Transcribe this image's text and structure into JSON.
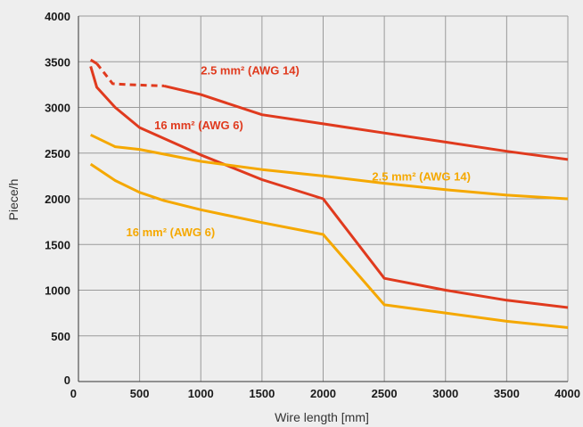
{
  "chart_data": {
    "type": "line",
    "xlabel": "Wire length [mm]",
    "ylabel": "Piece/h",
    "xlim": [
      0,
      4000
    ],
    "ylim": [
      0,
      4000
    ],
    "xticks": [
      "0",
      "500",
      "1000",
      "1500",
      "2000",
      "2500",
      "3000",
      "3500",
      "4000"
    ],
    "yticks": [
      "0",
      "500",
      "1000",
      "1500",
      "2000",
      "2500",
      "3000",
      "3500",
      "4000"
    ],
    "grid": true,
    "colors": {
      "red": "#e03a1e",
      "orange": "#f5a800",
      "grid": "#9a9a9a",
      "background": "#eeeeee"
    },
    "series": [
      {
        "name": "2.5 mm² (AWG 14)",
        "color": "#e03a1e",
        "segments": [
          {
            "style": "solid",
            "points": [
              [
                100,
                3520
              ],
              [
                150,
                3480
              ]
            ]
          },
          {
            "style": "dashed",
            "points": [
              [
                150,
                3480
              ],
              [
                280,
                3260
              ],
              [
                400,
                3250
              ],
              [
                600,
                3240
              ],
              [
                700,
                3235
              ]
            ]
          },
          {
            "style": "solid",
            "points": [
              [
                700,
                3235
              ],
              [
                1000,
                3140
              ],
              [
                1500,
                2920
              ],
              [
                2000,
                2820
              ],
              [
                2500,
                2720
              ],
              [
                3000,
                2620
              ],
              [
                3500,
                2520
              ],
              [
                4000,
                2430
              ]
            ]
          }
        ]
      },
      {
        "name": "16 mm² (AWG 6)",
        "color": "#e03a1e",
        "segments": [
          {
            "style": "solid",
            "points": [
              [
                100,
                3450
              ],
              [
                150,
                3220
              ],
              [
                300,
                3000
              ],
              [
                500,
                2780
              ],
              [
                1000,
                2480
              ],
              [
                1500,
                2210
              ],
              [
                2000,
                2000
              ],
              [
                2500,
                1130
              ],
              [
                3000,
                1000
              ],
              [
                3500,
                890
              ],
              [
                4000,
                810
              ]
            ]
          }
        ]
      },
      {
        "name": "2.5 mm² (AWG 14)",
        "color": "#f5a800",
        "segments": [
          {
            "style": "solid",
            "points": [
              [
                100,
                2700
              ],
              [
                300,
                2570
              ],
              [
                500,
                2540
              ],
              [
                1000,
                2410
              ],
              [
                1500,
                2320
              ],
              [
                2000,
                2250
              ],
              [
                2500,
                2170
              ],
              [
                3000,
                2100
              ],
              [
                3500,
                2040
              ],
              [
                4000,
                2000
              ]
            ]
          }
        ]
      },
      {
        "name": "16 mm² (AWG 6)",
        "color": "#f5a800",
        "segments": [
          {
            "style": "solid",
            "points": [
              [
                100,
                2380
              ],
              [
                300,
                2200
              ],
              [
                500,
                2070
              ],
              [
                700,
                1980
              ],
              [
                1000,
                1880
              ],
              [
                1500,
                1740
              ],
              [
                2000,
                1610
              ],
              [
                2500,
                840
              ],
              [
                3000,
                750
              ],
              [
                3500,
                660
              ],
              [
                4000,
                590
              ]
            ]
          }
        ]
      }
    ],
    "annotations": [
      {
        "text": "2.5 mm² (AWG 14)",
        "color": "#e03a1e",
        "x": 1000,
        "y": 3360
      },
      {
        "text": "16 mm² (AWG 6)",
        "color": "#e03a1e",
        "x": 620,
        "y": 2760
      },
      {
        "text": "2.5 mm² (AWG 14)",
        "color": "#f5a800",
        "x": 2400,
        "y": 2200
      },
      {
        "text": "16 mm² (AWG 6)",
        "color": "#f5a800",
        "x": 390,
        "y": 1590
      }
    ]
  }
}
